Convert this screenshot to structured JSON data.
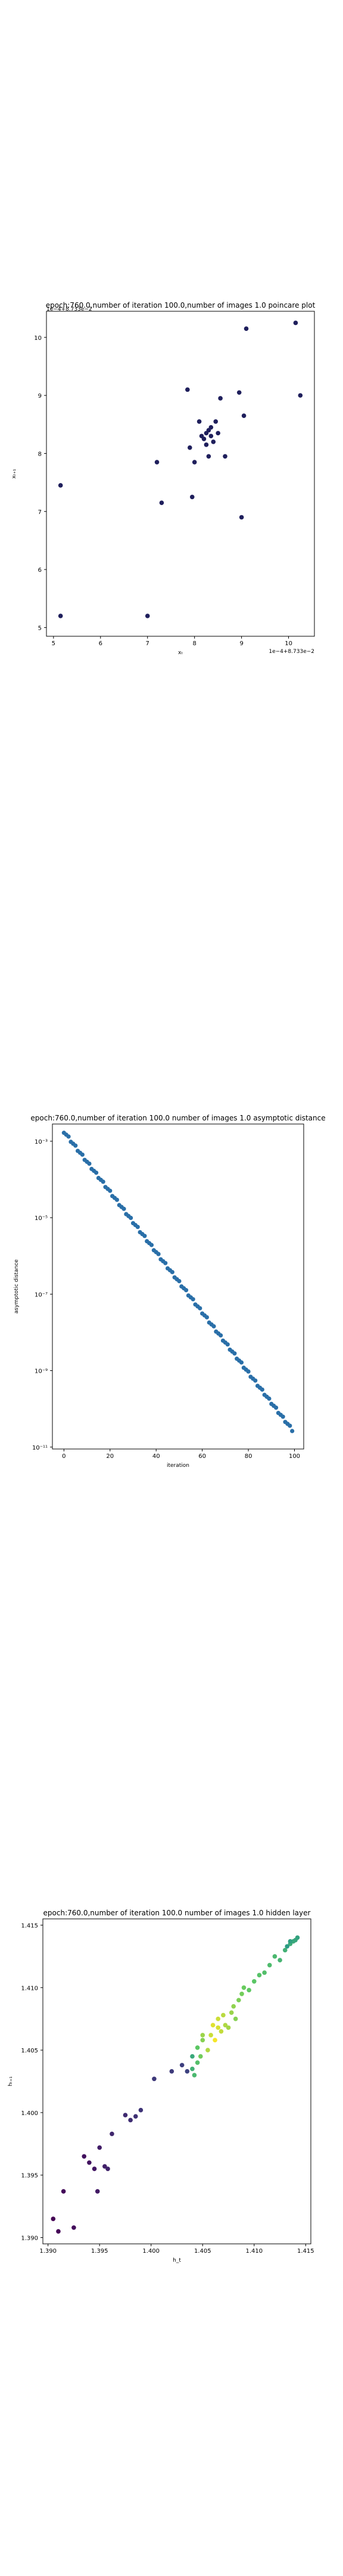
{
  "chart_data": [
    {
      "type": "scatter",
      "title": "epoch:760.0,number of iteration 100.0,number of images 1.0 poincare plot",
      "xlabel": "xₜ",
      "ylabel": "xₜ₊₁",
      "offset_text_x": "1e−4+8.733e−2",
      "offset_text_y": "1e−4+8.733e−2",
      "xlim": [
        4.85,
        10.55
      ],
      "ylim": [
        4.85,
        10.45
      ],
      "xticks": [
        5,
        6,
        7,
        8,
        9,
        10
      ],
      "yticks": [
        5,
        6,
        7,
        8,
        9,
        10
      ],
      "color": "#1f1f5c",
      "points": [
        [
          5.15,
          5.2
        ],
        [
          5.15,
          7.45
        ],
        [
          7.0,
          5.2
        ],
        [
          7.2,
          7.85
        ],
        [
          7.3,
          7.15
        ],
        [
          7.85,
          9.1
        ],
        [
          7.9,
          8.1
        ],
        [
          7.95,
          7.25
        ],
        [
          8.0,
          7.85
        ],
        [
          8.1,
          8.55
        ],
        [
          8.15,
          8.3
        ],
        [
          8.2,
          8.25
        ],
        [
          8.25,
          8.15
        ],
        [
          8.25,
          8.35
        ],
        [
          8.3,
          8.4
        ],
        [
          8.35,
          8.3
        ],
        [
          8.35,
          8.45
        ],
        [
          8.4,
          8.2
        ],
        [
          8.45,
          8.55
        ],
        [
          8.5,
          8.35
        ],
        [
          8.55,
          8.95
        ],
        [
          8.65,
          7.95
        ],
        [
          8.3,
          7.95
        ],
        [
          8.95,
          9.05
        ],
        [
          9.0,
          6.9
        ],
        [
          9.05,
          8.65
        ],
        [
          9.1,
          10.15
        ],
        [
          10.15,
          10.25
        ],
        [
          10.25,
          9.0
        ]
      ]
    },
    {
      "type": "scatter",
      "title": "epoch:760.0,number of iteration 100.0  number of images 1.0 asymptotic distance",
      "xlabel": "iteration",
      "ylabel": "asymptotic distance",
      "yscale": "log",
      "xlim": [
        -5,
        104
      ],
      "ylim_exp": [
        -11.05,
        -2.55
      ],
      "xticks": [
        0,
        20,
        40,
        60,
        80,
        100
      ],
      "yticks": [
        "10⁻³",
        "10⁻⁵",
        "10⁻⁷",
        "10⁻⁹",
        "10⁻¹¹"
      ],
      "ytick_exps": [
        -3,
        -5,
        -7,
        -9,
        -11
      ],
      "color": "#2a6fa8",
      "n_points": 100,
      "log10_start": -2.75,
      "log10_end": -10.55
    },
    {
      "type": "scatter",
      "title": "epoch:760.0,number of iteration 100.0  number of images 1.0 hidden layer",
      "xlabel": "h_t",
      "ylabel": "hₜ₊₁",
      "xlim": [
        1.3895,
        1.4155
      ],
      "ylim": [
        1.3895,
        1.4155
      ],
      "xticks": [
        1.39,
        1.395,
        1.4,
        1.405,
        1.41,
        1.415
      ],
      "yticks": [
        1.39,
        1.395,
        1.4,
        1.405,
        1.41,
        1.415
      ],
      "colormap": "viridis",
      "points": [
        [
          1.3905,
          1.3915
        ],
        [
          1.391,
          1.3905
        ],
        [
          1.3915,
          1.3937
        ],
        [
          1.3925,
          1.3908
        ],
        [
          1.3935,
          1.3965
        ],
        [
          1.394,
          1.396
        ],
        [
          1.3945,
          1.3955
        ],
        [
          1.3948,
          1.3937
        ],
        [
          1.395,
          1.3972
        ],
        [
          1.3955,
          1.3957
        ],
        [
          1.3958,
          1.3955
        ],
        [
          1.3962,
          1.3983
        ],
        [
          1.3975,
          1.3998
        ],
        [
          1.398,
          1.3994
        ],
        [
          1.3985,
          1.3997
        ],
        [
          1.399,
          1.4002
        ],
        [
          1.4003,
          1.4027
        ],
        [
          1.402,
          1.4033
        ],
        [
          1.403,
          1.4038
        ],
        [
          1.4035,
          1.4033
        ],
        [
          1.404,
          1.4045
        ],
        [
          1.404,
          1.4035
        ],
        [
          1.4042,
          1.403
        ],
        [
          1.4045,
          1.404
        ],
        [
          1.4045,
          1.4052
        ],
        [
          1.4048,
          1.4045
        ],
        [
          1.405,
          1.4058
        ],
        [
          1.405,
          1.4062
        ],
        [
          1.4055,
          1.405
        ],
        [
          1.4058,
          1.4062
        ],
        [
          1.406,
          1.407
        ],
        [
          1.4062,
          1.4058
        ],
        [
          1.4065,
          1.4068
        ],
        [
          1.4065,
          1.4075
        ],
        [
          1.4068,
          1.4065
        ],
        [
          1.407,
          1.4078
        ],
        [
          1.4072,
          1.407
        ],
        [
          1.4075,
          1.4068
        ],
        [
          1.4078,
          1.408
        ],
        [
          1.408,
          1.4085
        ],
        [
          1.4082,
          1.4075
        ],
        [
          1.4085,
          1.409
        ],
        [
          1.4088,
          1.4095
        ],
        [
          1.409,
          1.41
        ],
        [
          1.4095,
          1.4098
        ],
        [
          1.41,
          1.4105
        ],
        [
          1.4105,
          1.411
        ],
        [
          1.411,
          1.4112
        ],
        [
          1.4115,
          1.4118
        ],
        [
          1.412,
          1.4125
        ],
        [
          1.4125,
          1.4122
        ],
        [
          1.413,
          1.413
        ],
        [
          1.4135,
          1.4135
        ],
        [
          1.4138,
          1.4137
        ],
        [
          1.414,
          1.4138
        ],
        [
          1.4142,
          1.414
        ],
        [
          1.4135,
          1.4137
        ],
        [
          1.4132,
          1.4133
        ]
      ]
    }
  ]
}
